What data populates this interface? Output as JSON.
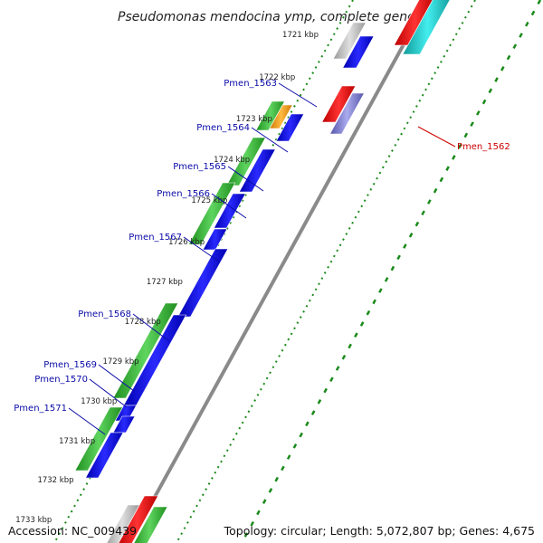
{
  "title": "Pseudomonas mendocina ymp, complete genome",
  "footer": {
    "accession": "Accession: NC_009439",
    "topology": "Topology: circular; Length: 5,072,807 bp; Genes: 4,675"
  },
  "colors": {
    "backbone": "#8a8a8a",
    "forward_green": "#3cb43c",
    "reverse_blue": "#1010e0",
    "rna_red": "#ee1111",
    "cyan": "#22cccc",
    "grey": "#c0c0c0",
    "orange": "#ff9900",
    "lavender": "#8888dd",
    "label_blue": "#0a0aa8",
    "label_red": "#cc0000"
  },
  "ticks": [
    "1721 kbp",
    "1722 kbp",
    "1723 kbp",
    "1724 kbp",
    "1725 kbp",
    "1726 kbp",
    "1727 kbp",
    "1728 kbp",
    "1729 kbp",
    "1730 kbp",
    "1731 kbp",
    "1732 kbp",
    "1733 kbp"
  ],
  "gene_labels": [
    {
      "name": "Pmen_1562",
      "color": "red"
    },
    {
      "name": "Pmen_1563",
      "color": "blue"
    },
    {
      "name": "Pmen_1564",
      "color": "blue"
    },
    {
      "name": "Pmen_1565",
      "color": "blue"
    },
    {
      "name": "Pmen_1566",
      "color": "blue"
    },
    {
      "name": "Pmen_1567",
      "color": "blue"
    },
    {
      "name": "Pmen_1568",
      "color": "blue"
    },
    {
      "name": "Pmen_1569",
      "color": "blue"
    },
    {
      "name": "Pmen_1570",
      "color": "blue"
    },
    {
      "name": "Pmen_1571",
      "color": "blue"
    }
  ]
}
